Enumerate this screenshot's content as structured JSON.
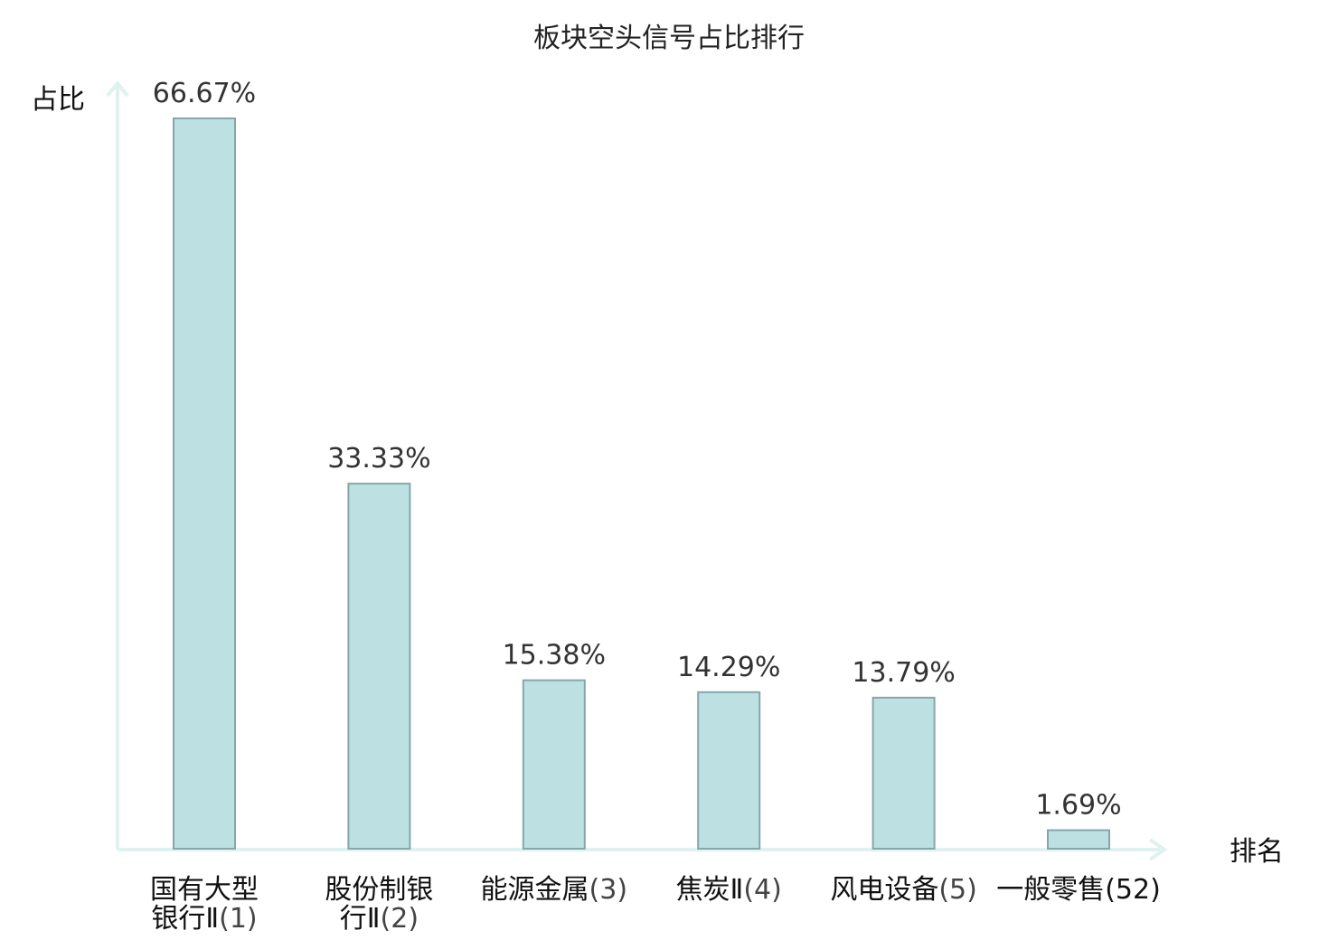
{
  "chart_data": {
    "type": "bar",
    "title": "板块空头信号占比排行",
    "ylabel": "占比",
    "xlabel": "排名",
    "ylim": [
      0,
      70
    ],
    "grid": false,
    "categories": [
      {
        "lines": [
          "国有大型",
          "银行Ⅱ(1)"
        ],
        "name": "国有大型银行Ⅱ",
        "rank": "(1)"
      },
      {
        "lines": [
          "股份制银",
          "行Ⅱ(2)"
        ],
        "name": "股份制银行Ⅱ",
        "rank": "(2)"
      },
      {
        "lines": [
          "能源金属(3)"
        ],
        "name": "能源金属",
        "rank": "(3)"
      },
      {
        "lines": [
          "焦炭Ⅱ(4)"
        ],
        "name": "焦炭Ⅱ",
        "rank": "(4)"
      },
      {
        "lines": [
          "风电设备(5)"
        ],
        "name": "风电设备",
        "rank": "(5)"
      },
      {
        "lines": [
          "一般零售(52)"
        ],
        "name": "一般零售",
        "rank": "(52)",
        "highlight": true
      }
    ],
    "values": [
      66.67,
      33.33,
      15.38,
      14.29,
      13.79,
      1.69
    ],
    "value_labels": [
      "66.67%",
      "33.33%",
      "15.38%",
      "14.29%",
      "13.79%",
      "1.69%"
    ]
  },
  "colors": {
    "bar_fill": "#bde0e3",
    "bar_stroke": "#86a7aa",
    "axis": "#def2ef",
    "highlight": "#e02020",
    "text": "#111111"
  }
}
